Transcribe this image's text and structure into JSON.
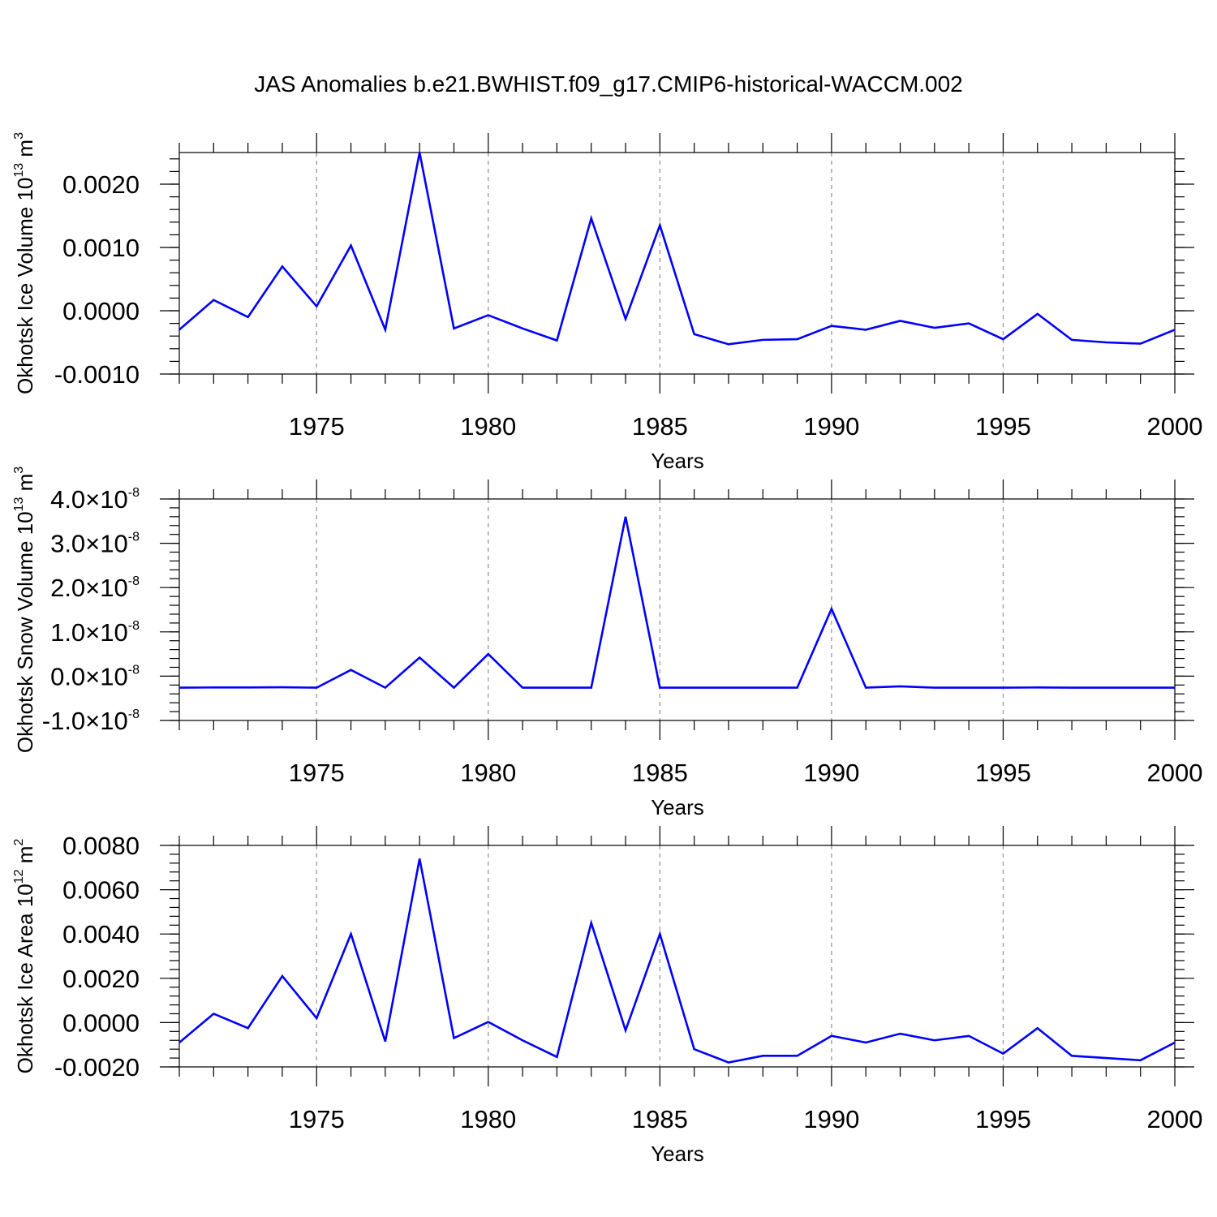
{
  "title": "JAS Anomalies b.e21.BWHIST.f09_g17.CMIP6-historical-WACCM.002",
  "colors": {
    "series": "#0000ff",
    "grid": "#9a9a9a",
    "axis": "#000000"
  },
  "chart_data": [
    {
      "type": "line",
      "title": "",
      "xlabel": "Years",
      "ylabel": {
        "text": "Okhotsk Ice Volume 10",
        "sup": "13",
        "unit": " m",
        "unit_sup": "3"
      },
      "xlim": [
        1971,
        2000
      ],
      "ylim": [
        -0.001,
        0.0025
      ],
      "x_ticks": [
        "1975",
        "1980",
        "1985",
        "1990",
        "1995",
        "2000"
      ],
      "y_ticks": [
        {
          "value": -0.001,
          "label": "-0.0010"
        },
        {
          "value": 0.0,
          "label": "0.0000"
        },
        {
          "value": 0.001,
          "label": "0.0010"
        },
        {
          "value": 0.002,
          "label": "0.0020"
        }
      ],
      "grid": "x-dashed",
      "x": [
        1971,
        1972,
        1973,
        1974,
        1975,
        1976,
        1977,
        1978,
        1979,
        1980,
        1981,
        1982,
        1983,
        1984,
        1985,
        1986,
        1987,
        1988,
        1989,
        1990,
        1991,
        1992,
        1993,
        1994,
        1995,
        1996,
        1997,
        1998,
        1999,
        2000
      ],
      "values": [
        -0.0003,
        0.00017,
        -0.0001,
        0.0007,
        7e-05,
        0.00103,
        -0.0003,
        0.0025,
        -0.00028,
        -7e-05,
        -0.00028,
        -0.00047,
        0.00146,
        -0.00013,
        0.00135,
        -0.00037,
        -0.00053,
        -0.00046,
        -0.00045,
        -0.00024,
        -0.0003,
        -0.00016,
        -0.00027,
        -0.0002,
        -0.00045,
        -5e-05,
        -0.00046,
        -0.0005,
        -0.00052,
        -0.0003
      ]
    },
    {
      "type": "line",
      "title": "",
      "xlabel": "Years",
      "ylabel": {
        "text": "Okhotsk Snow Volume 10",
        "sup": "13",
        "unit": " m",
        "unit_sup": "3"
      },
      "xlim": [
        1971,
        2000
      ],
      "ylim": [
        -1e-08,
        4e-08
      ],
      "x_ticks": [
        "1975",
        "1980",
        "1985",
        "1990",
        "1995",
        "2000"
      ],
      "y_ticks": [
        {
          "value": -1e-08,
          "label": "-1.0×10",
          "exp": "-8"
        },
        {
          "value": 0.0,
          "label": "0.0×10",
          "exp": "-8"
        },
        {
          "value": 1e-08,
          "label": "1.0×10",
          "exp": "-8"
        },
        {
          "value": 2e-08,
          "label": "2.0×10",
          "exp": "-8"
        },
        {
          "value": 3e-08,
          "label": "3.0×10",
          "exp": "-8"
        },
        {
          "value": 4e-08,
          "label": "4.0×10",
          "exp": "-8"
        }
      ],
      "grid": "x-dashed",
      "x": [
        1971,
        1972,
        1973,
        1974,
        1975,
        1976,
        1977,
        1978,
        1979,
        1980,
        1981,
        1982,
        1983,
        1984,
        1985,
        1986,
        1987,
        1988,
        1989,
        1990,
        1991,
        1992,
        1993,
        1994,
        1995,
        1996,
        1997,
        1998,
        1999,
        2000
      ],
      "values": [
        -2.6e-09,
        -2.55e-09,
        -2.55e-09,
        -2.5e-09,
        -2.6e-09,
        1.4e-09,
        -2.6e-09,
        4.2e-09,
        -2.6e-09,
        5e-09,
        -2.6e-09,
        -2.6e-09,
        -2.6e-09,
        3.6e-08,
        -2.6e-09,
        -2.6e-09,
        -2.6e-09,
        -2.6e-09,
        -2.6e-09,
        1.52e-08,
        -2.6e-09,
        -2.3e-09,
        -2.6e-09,
        -2.6e-09,
        -2.6e-09,
        -2.55e-09,
        -2.6e-09,
        -2.6e-09,
        -2.6e-09,
        -2.6e-09
      ]
    },
    {
      "type": "line",
      "title": "",
      "xlabel": "Years",
      "ylabel": {
        "text": "Okhotsk Ice Area 10",
        "sup": "12",
        "unit": " m",
        "unit_sup": "2"
      },
      "xlim": [
        1971,
        2000
      ],
      "ylim": [
        -0.002,
        0.008
      ],
      "x_ticks": [
        "1975",
        "1980",
        "1985",
        "1990",
        "1995",
        "2000"
      ],
      "y_ticks": [
        {
          "value": -0.002,
          "label": "-0.0020"
        },
        {
          "value": 0.0,
          "label": "0.0000"
        },
        {
          "value": 0.002,
          "label": "0.0020"
        },
        {
          "value": 0.004,
          "label": "0.0040"
        },
        {
          "value": 0.006,
          "label": "0.0060"
        },
        {
          "value": 0.008,
          "label": "0.0080"
        }
      ],
      "grid": "x-dashed",
      "x": [
        1971,
        1972,
        1973,
        1974,
        1975,
        1976,
        1977,
        1978,
        1979,
        1980,
        1981,
        1982,
        1983,
        1984,
        1985,
        1986,
        1987,
        1988,
        1989,
        1990,
        1991,
        1992,
        1993,
        1994,
        1995,
        1996,
        1997,
        1998,
        1999,
        2000
      ],
      "values": [
        -0.0009,
        0.0004,
        -0.00025,
        0.0021,
        0.0002,
        0.004,
        -0.00085,
        0.0074,
        -0.0007,
        3e-05,
        -0.0008,
        -0.00155,
        0.0045,
        -0.00035,
        0.004,
        -0.0012,
        -0.0018,
        -0.0015,
        -0.0015,
        -0.0006,
        -0.0009,
        -0.0005,
        -0.0008,
        -0.0006,
        -0.0014,
        -0.00025,
        -0.0015,
        -0.0016,
        -0.0017,
        -0.0009
      ]
    }
  ]
}
